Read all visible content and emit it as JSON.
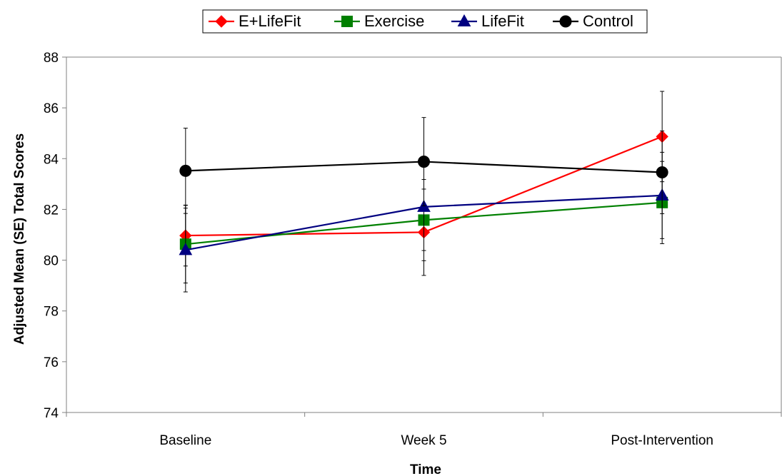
{
  "chart_data": {
    "type": "line",
    "title": "",
    "xlabel": "Time",
    "ylabel": "Adjusted Mean (SE) Total Scores",
    "categories": [
      "Baseline",
      "Week 5",
      "Post-Intervention"
    ],
    "ylim": [
      74,
      88
    ],
    "yticks": [
      74,
      76,
      78,
      80,
      82,
      84,
      86,
      88
    ],
    "grid": false,
    "legend_position": "top",
    "series": [
      {
        "name": "E+LifeFit",
        "color": "#ff0000",
        "marker": "diamond",
        "values": [
          80.97,
          81.1,
          84.87
        ],
        "se": [
          1.2,
          1.7,
          1.78
        ]
      },
      {
        "name": "Exercise",
        "color": "#008000",
        "marker": "square",
        "values": [
          80.63,
          81.58,
          82.27
        ],
        "se": [
          1.53,
          1.6,
          1.62
        ]
      },
      {
        "name": "LifeFit",
        "color": "#000080",
        "marker": "triangle",
        "values": [
          80.4,
          82.1,
          82.55
        ],
        "se": [
          1.65,
          1.72,
          1.7
        ]
      },
      {
        "name": "Control",
        "color": "#000000",
        "marker": "circle",
        "values": [
          83.52,
          83.88,
          83.46
        ],
        "se": [
          1.68,
          1.74,
          1.63
        ]
      }
    ]
  }
}
